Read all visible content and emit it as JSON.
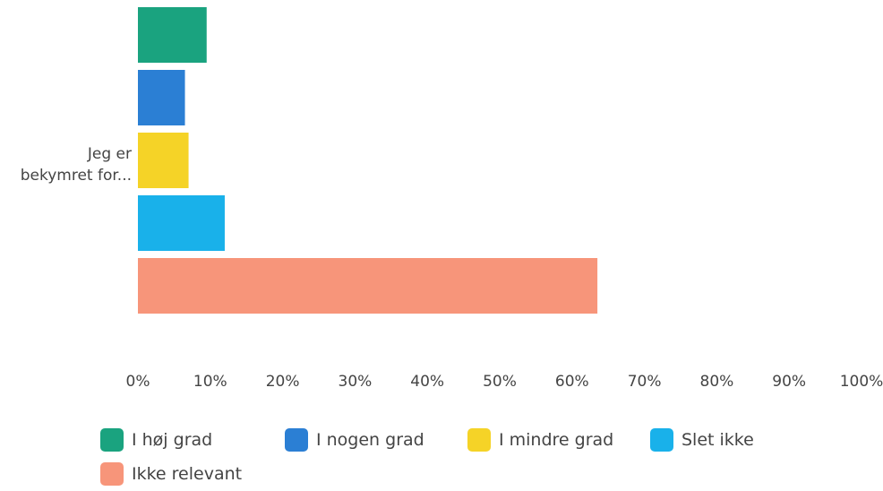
{
  "chart_data": {
    "type": "bar",
    "orientation": "horizontal",
    "categories": [
      "Jeg er bekymret for..."
    ],
    "category_label_lines": [
      "Jeg er",
      "bekymret for..."
    ],
    "series": [
      {
        "name": "I høj grad",
        "values": [
          9.5
        ],
        "color": "#1aa37f"
      },
      {
        "name": "I nogen grad",
        "values": [
          6.5
        ],
        "color": "#2b7fd4"
      },
      {
        "name": "I mindre grad",
        "values": [
          7
        ],
        "color": "#f5d327"
      },
      {
        "name": "Slet ikke",
        "values": [
          12
        ],
        "color": "#19b1ea"
      },
      {
        "name": "Ikke relevant",
        "values": [
          63.5
        ],
        "color": "#f7957a"
      }
    ],
    "xlim": [
      0,
      100
    ],
    "x_ticks": [
      "0%",
      "10%",
      "20%",
      "30%",
      "40%",
      "50%",
      "60%",
      "70%",
      "80%",
      "90%",
      "100%"
    ],
    "grid": false,
    "legend_position": "bottom"
  }
}
